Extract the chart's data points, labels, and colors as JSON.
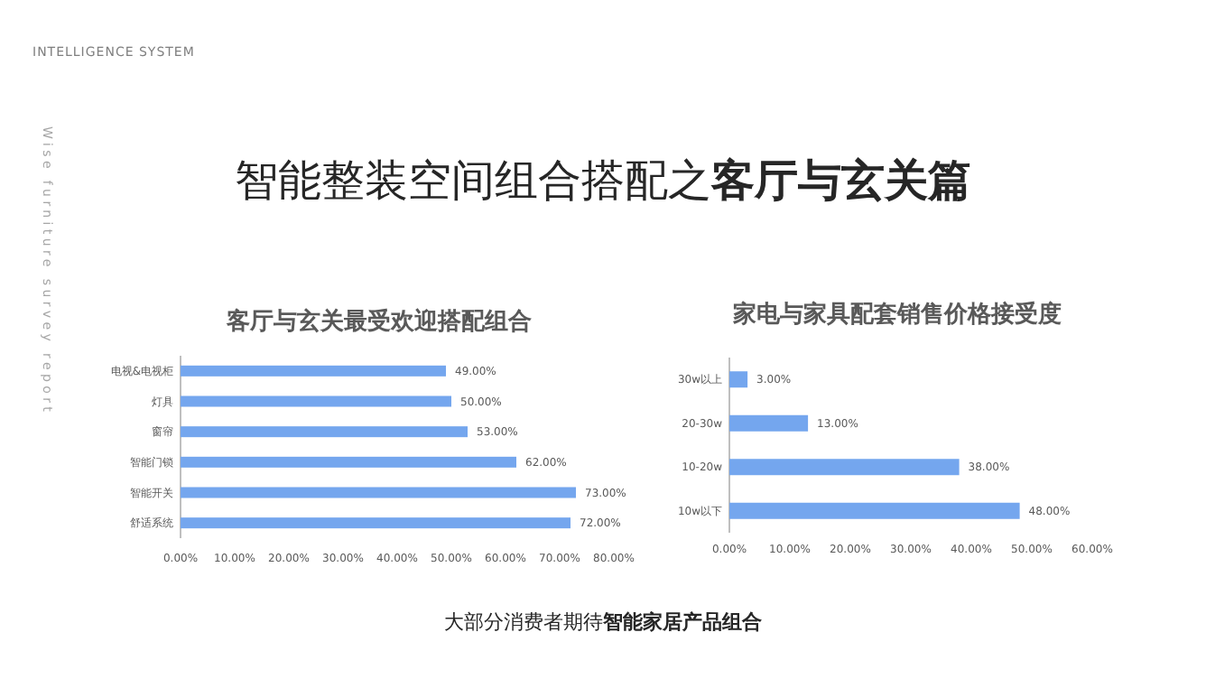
{
  "chart_data": [
    {
      "type": "bar",
      "orientation": "horizontal",
      "title": "客厅与玄关最受欢迎搭配组合",
      "categories": [
        "电视&电视柜",
        "灯具",
        "窗帘",
        "智能门锁",
        "智能开关",
        "舒适系统"
      ],
      "values": [
        49,
        50,
        53,
        62,
        73,
        72
      ],
      "value_labels": [
        "49.00%",
        "50.00%",
        "53.00%",
        "62.00%",
        "73.00%",
        "72.00%"
      ],
      "color": "#74a6ee",
      "xlim": [
        0,
        80
      ],
      "xticks": [
        {
          "value": 0,
          "label": "0.00%"
        },
        {
          "value": 10,
          "label": "10.00%"
        },
        {
          "value": 20,
          "label": "20.00%"
        },
        {
          "value": 30,
          "label": "30.00%"
        },
        {
          "value": 40,
          "label": "40.00%"
        },
        {
          "value": 50,
          "label": "50.00%"
        },
        {
          "value": 60,
          "label": "60.00%"
        },
        {
          "value": 70,
          "label": "70.00%"
        },
        {
          "value": 80,
          "label": "80.00%"
        }
      ]
    },
    {
      "type": "bar",
      "orientation": "horizontal",
      "title": "家电与家具配套销售价格接受度",
      "categories": [
        "30w以上",
        "20-30w",
        "10-20w",
        "10w以下"
      ],
      "values": [
        3,
        13,
        38,
        48
      ],
      "value_labels": [
        "3.00%",
        "13.00%",
        "38.00%",
        "48.00%"
      ],
      "color": "#74a6ee",
      "xlim": [
        0,
        60
      ],
      "xticks": [
        {
          "value": 0,
          "label": "0.00%"
        },
        {
          "value": 10,
          "label": "10.00%"
        },
        {
          "value": 20,
          "label": "20.00%"
        },
        {
          "value": 30,
          "label": "30.00%"
        },
        {
          "value": 40,
          "label": "40.00%"
        },
        {
          "value": 50,
          "label": "50.00%"
        },
        {
          "value": 60,
          "label": "60.00%"
        }
      ]
    },
    {
      "type": "other",
      "title": "智能整装空间组合搭配之**客厅与玄关篇**",
      "annotations": [
        "INTELLIGENCE SYSTEM",
        "Wise furniture survey report",
        "大部分消费者期待**智能家居产品组合**"
      ]
    }
  ]
}
